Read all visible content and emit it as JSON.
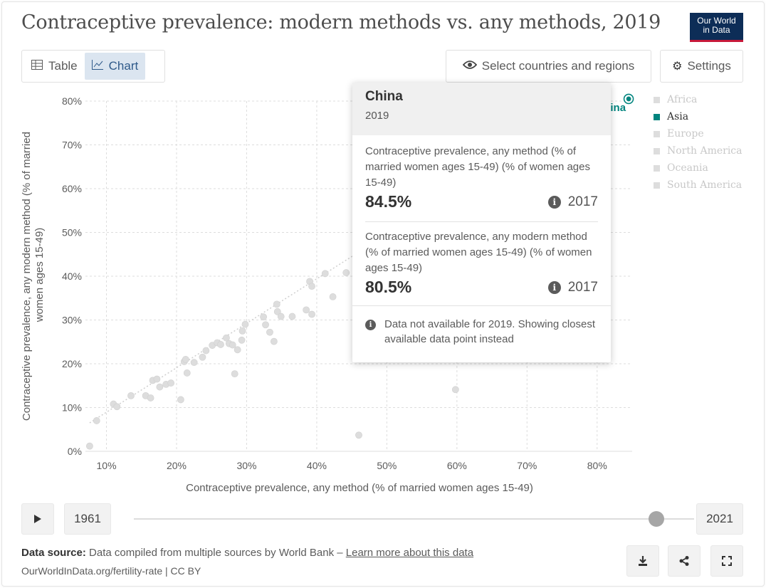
{
  "header": {
    "title": "Contraceptive prevalence: modern methods vs. any methods, 2019",
    "logo_text_1": "Our World",
    "logo_text_2": "in Data"
  },
  "toolbar": {
    "tab_table": "Table",
    "tab_chart": "Chart",
    "select_label": "Select countries and regions",
    "settings_label": "Settings"
  },
  "legend": {
    "items": [
      "Africa",
      "Asia",
      "Europe",
      "North America",
      "Oceania",
      "South America"
    ],
    "active": "Asia"
  },
  "tooltip": {
    "entity": "China",
    "year": "2019",
    "metric1_label": "Contraceptive prevalence, any method (% of married women ages 15-49) (% of women ages 15-49)",
    "metric1_value": "84.5%",
    "metric1_year": "2017",
    "metric2_label": "Contraceptive prevalence, any modern method (% of married women ages 15-49) (% of women ages 15-49)",
    "metric2_value": "80.5%",
    "metric2_year": "2017",
    "note": "Data not available for 2019. Showing closest available data point instead"
  },
  "timeline": {
    "start_year": "1961",
    "end_year": "2021",
    "position_fraction": 0.92
  },
  "footer": {
    "source_label": "Data source:",
    "source_text": "Data compiled from multiple sources by World Bank –",
    "learn_more": "Learn more about this data",
    "url_text": "OurWorldInData.org/fertility-rate | CC BY"
  },
  "colors": {
    "highlight": "#00847e",
    "muted_point": "#dddddd",
    "grid": "#dddddd",
    "axis_text": "#5b5b5b"
  },
  "icons": {
    "table": "table-icon",
    "chart": "chart-icon",
    "eye": "eye-icon",
    "gear": "gear-icon",
    "play": "play-icon",
    "download": "download-icon",
    "share": "share-icon",
    "fullscreen": "fullscreen-icon",
    "info": "info-icon"
  },
  "chart_data": {
    "type": "scatter",
    "title": "Contraceptive prevalence: modern methods vs. any methods, 2019",
    "xlabel": "Contraceptive prevalence, any method (% of married women ages 15-49)",
    "ylabel": "Contraceptive prevalence, any modern method (% of married women ages 15-49)",
    "xlim": [
      7,
      85
    ],
    "ylim": [
      0,
      80
    ],
    "xticks": [
      10,
      20,
      30,
      40,
      50,
      60,
      70,
      80
    ],
    "yticks": [
      0,
      10,
      20,
      30,
      40,
      50,
      60,
      70,
      80
    ],
    "x_tick_labels": [
      "10%",
      "20%",
      "30%",
      "40%",
      "50%",
      "60%",
      "70%",
      "80%"
    ],
    "y_tick_labels": [
      "0%",
      "10%",
      "20%",
      "30%",
      "40%",
      "50%",
      "60%",
      "70%",
      "80%"
    ],
    "grid": true,
    "legend_position": "right",
    "trendline": [
      [
        7.6,
        6.5
      ],
      [
        46,
        45.5
      ]
    ],
    "highlighted": {
      "name": "China",
      "label_visible": "ina",
      "x": 84.5,
      "y": 80.5
    },
    "points": [
      [
        7.6,
        1.2
      ],
      [
        8.6,
        7.0
      ],
      [
        11.0,
        10.8
      ],
      [
        11.5,
        10.2
      ],
      [
        13.5,
        12.7
      ],
      [
        15.6,
        12.7
      ],
      [
        16.3,
        12.2
      ],
      [
        16.6,
        16.2
      ],
      [
        17.2,
        16.5
      ],
      [
        17.6,
        14.7
      ],
      [
        18.5,
        15.3
      ],
      [
        19.2,
        15.6
      ],
      [
        20.6,
        11.8
      ],
      [
        21.1,
        20.5
      ],
      [
        21.3,
        21.0
      ],
      [
        21.5,
        17.9
      ],
      [
        22.5,
        20.3
      ],
      [
        23.7,
        21.5
      ],
      [
        24.2,
        23.0
      ],
      [
        25.1,
        24.2
      ],
      [
        25.8,
        24.8
      ],
      [
        26.3,
        24.4
      ],
      [
        27.1,
        25.9
      ],
      [
        27.5,
        24.6
      ],
      [
        28.0,
        24.3
      ],
      [
        28.3,
        17.7
      ],
      [
        28.7,
        23.2
      ],
      [
        29.3,
        25.4
      ],
      [
        29.4,
        27.5
      ],
      [
        29.8,
        29.0
      ],
      [
        32.4,
        30.7
      ],
      [
        32.7,
        28.9
      ],
      [
        33.3,
        27.2
      ],
      [
        33.9,
        25.1
      ],
      [
        34.3,
        33.6
      ],
      [
        34.4,
        31.9
      ],
      [
        34.9,
        30.8
      ],
      [
        36.5,
        30.8
      ],
      [
        38.5,
        32.3
      ],
      [
        39.0,
        38.8
      ],
      [
        39.3,
        31.3
      ],
      [
        39.3,
        37.7
      ],
      [
        41.2,
        40.6
      ],
      [
        42.3,
        35.3
      ],
      [
        44.2,
        40.8
      ],
      [
        46.0,
        3.7
      ],
      [
        59.8,
        14.1
      ]
    ]
  }
}
